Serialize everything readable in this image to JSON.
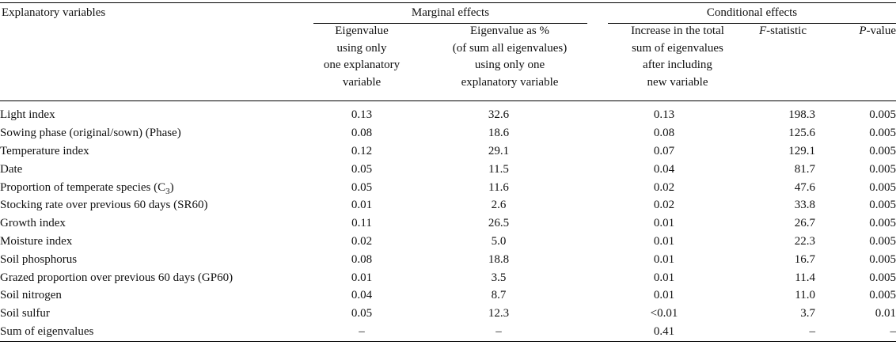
{
  "table": {
    "stub_header": "Explanatory variables",
    "group_headers": {
      "marginal": "Marginal effects",
      "conditional": "Conditional effects"
    },
    "column_headers": {
      "eig_one": [
        "Eigenvalue",
        "using only",
        "one explanatory",
        "variable"
      ],
      "eig_pct": [
        "Eigenvalue as %",
        "(of sum all eigenvalues)",
        "using only one",
        "explanatory variable"
      ],
      "increase": [
        "Increase in the total",
        "sum of eigenvalues",
        "after including",
        "new variable"
      ],
      "f_prefix": "F",
      "f_suffix": "-statistic",
      "p_prefix": "P",
      "p_suffix": "-value"
    },
    "rows": [
      {
        "name": "Light index",
        "eig": "0.13",
        "pct": "32.6",
        "inc": "0.13",
        "f": "198.3",
        "p": "0.005"
      },
      {
        "name": "Sowing phase (original/sown) (Phase)",
        "eig": "0.08",
        "pct": "18.6",
        "inc": "0.08",
        "f": "125.6",
        "p": "0.005"
      },
      {
        "name": "Temperature index",
        "eig": "0.12",
        "pct": "29.1",
        "inc": "0.07",
        "f": "129.1",
        "p": "0.005"
      },
      {
        "name": "Date",
        "eig": "0.05",
        "pct": "11.5",
        "inc": "0.04",
        "f": "81.7",
        "p": "0.005"
      },
      {
        "name": "Proportion of temperate species (C",
        "name_sub": "3",
        "name_tail": ")",
        "eig": "0.05",
        "pct": "11.6",
        "inc": "0.02",
        "f": "47.6",
        "p": "0.005"
      },
      {
        "name": "Stocking rate over previous 60 days (SR60)",
        "eig": "0.01",
        "pct": "2.6",
        "inc": "0.02",
        "f": "33.8",
        "p": "0.005"
      },
      {
        "name": "Growth index",
        "eig": "0.11",
        "pct": "26.5",
        "inc": "0.01",
        "f": "26.7",
        "p": "0.005"
      },
      {
        "name": "Moisture index",
        "eig": "0.02",
        "pct": "5.0",
        "inc": "0.01",
        "f": "22.3",
        "p": "0.005"
      },
      {
        "name": "Soil phosphorus",
        "eig": "0.08",
        "pct": "18.8",
        "inc": "0.01",
        "f": "16.7",
        "p": "0.005"
      },
      {
        "name": "Grazed proportion over previous 60 days (GP60)",
        "eig": "0.01",
        "pct": "3.5",
        "inc": "0.01",
        "f": "11.4",
        "p": "0.005"
      },
      {
        "name": "Soil nitrogen",
        "eig": "0.04",
        "pct": "8.7",
        "inc": "0.01",
        "f": "11.0",
        "p": "0.005"
      },
      {
        "name": "Soil sulfur",
        "eig": "0.05",
        "pct": "12.3",
        "inc": "<0.01",
        "f": "3.7",
        "p": "0.01"
      },
      {
        "name": "Sum of eigenvalues",
        "eig": "–",
        "pct": "–",
        "inc": "0.41",
        "f": "–",
        "p": "–"
      }
    ]
  }
}
